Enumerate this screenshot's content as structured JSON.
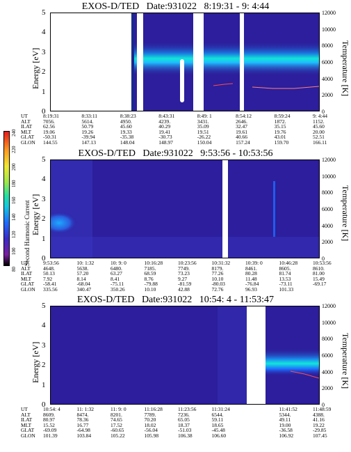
{
  "colors": {
    "background": "#2c1e9c",
    "accent_band": "#12e6d9",
    "band_core": "#1fbaff",
    "temp_curve": "#ff4d4d",
    "gap": "#ffffff"
  },
  "colorbar": {
    "label": "Second Harmonic Current",
    "ticks": [
      "80",
      "100",
      "120",
      "140",
      "160",
      "180",
      "200",
      "220",
      "240"
    ]
  },
  "chart_data": [
    {
      "type": "heatmap",
      "title": "EXOS-D/TED   Date:931022   8:19:31 - 9: 4:44",
      "ylabel": "Energy [eV]",
      "ylabel_right": "Temperature [K]",
      "ylim": [
        0,
        5
      ],
      "ylim_right": [
        0,
        12000
      ],
      "yticks": [
        "0",
        "1",
        "2",
        "3",
        "4",
        "5"
      ],
      "yticks_right": [
        "0",
        "2000",
        "4000",
        "6000",
        "8000",
        "10000",
        "12000"
      ],
      "orbit_labels": [
        "UT",
        "ALT",
        "ILAT",
        "MLT",
        "GLAT",
        "GLON"
      ],
      "orbit": {
        "UT": [
          "8:19:31",
          "8:33:11",
          "8:38:23",
          "8:43:31",
          "8:49: 1",
          "8:54:12",
          "8:59:24",
          "9: 4:44"
        ],
        "ALT": [
          "7056.",
          "5614.",
          "4950.",
          "4239.",
          "3431.",
          "2646.",
          "1872.",
          "1152."
        ],
        "ILAT": [
          "62.56",
          "50.79",
          "45.60",
          "40.29",
          "35.09",
          "32.47",
          "35.15",
          "45.60"
        ],
        "MLT": [
          "19.06",
          "19.26",
          "19.33",
          "19.41",
          "19.51",
          "19.61",
          "19.76",
          "20.00"
        ],
        "GLAT": [
          "-50.31",
          "-39.94",
          "-35.38",
          "-30.73",
          "-26.22",
          "40.66",
          "43.01",
          "52.51"
        ],
        "GLON": [
          "144.55",
          "147.13",
          "148.04",
          "148.97",
          "150.04",
          "157.24",
          "159.70",
          "166.11"
        ]
      }
    },
    {
      "type": "heatmap",
      "title": "EXOS-D/TED   Date:931022   9:53:56 - 10:53:56",
      "ylabel": "Energy [eV]",
      "ylabel_right": "Temperature [K]",
      "ylim": [
        0,
        5
      ],
      "ylim_right": [
        0,
        12000
      ],
      "yticks": [
        "0",
        "1",
        "2",
        "3",
        "4",
        "5"
      ],
      "yticks_right": [
        "0",
        "2000",
        "4000",
        "6000",
        "8000",
        "10000",
        "12000"
      ],
      "orbit_labels": [
        "UT",
        "ALT",
        "ILAT",
        "MLT",
        "GLAT",
        "GLON"
      ],
      "orbit": {
        "UT": [
          "9:53:56",
          "10: 1:32",
          "10: 9: 0",
          "10:16:28",
          "10:23:56",
          "10:31:32",
          "10:39: 0",
          "10:46:28",
          "10:53:56"
        ],
        "ALT": [
          "4648.",
          "5638.",
          "6480.",
          "7185.",
          "7749.",
          "8179.",
          "8461.",
          "8605.",
          "8610."
        ],
        "ILAT": [
          "50.13",
          "57.20",
          "63.27",
          "68.59",
          "73.23",
          "77.26",
          "80.28",
          "81.74",
          "81.00"
        ],
        "MLT": [
          "7.92",
          "8.14",
          "8.41",
          "8.76",
          "9.27",
          "10.10",
          "11.48",
          "13.53",
          "15.49"
        ],
        "GLAT": [
          "-58.41",
          "-68.04",
          "-75.11",
          "-79.88",
          "-81.59",
          "-80.03",
          "-76.84",
          "-73.11",
          "-69.17"
        ],
        "GLON": [
          "335.56",
          "340.47",
          "350.26",
          "10.10",
          "42.88",
          "72.76",
          "96.93",
          "101.33",
          ""
        ]
      }
    },
    {
      "type": "heatmap",
      "title": "EXOS-D/TED   Date:931022   10:54: 4 - 11:53:47",
      "ylabel": "Energy [eV]",
      "ylabel_right": "Temperature [K]",
      "ylim": [
        0,
        5
      ],
      "ylim_right": [
        0,
        12000
      ],
      "yticks": [
        "0",
        "1",
        "2",
        "3",
        "4",
        "5"
      ],
      "yticks_right": [
        "0",
        "2000",
        "4000",
        "6000",
        "8000",
        "10000",
        "12000"
      ],
      "orbit_labels": [
        "UT",
        "ALT",
        "ILAT",
        "MLT",
        "GLAT",
        "GLON"
      ],
      "orbit": {
        "UT": [
          "10:54: 4",
          "11: 1:32",
          "11: 9: 0",
          "11:16:28",
          "11:23:56",
          "11:31:24",
          "",
          "11:41:52",
          "11:48:59"
        ],
        "ALT": [
          "8609.",
          "8474.",
          "8201.",
          "7789.",
          "7236.",
          "6544.",
          "",
          "5344.",
          "4388."
        ],
        "ILAT": [
          "80.97",
          "78.36",
          "74.65",
          "70.20",
          "65.05",
          "59.11",
          "",
          "49.11",
          "41.16"
        ],
        "MLT": [
          "15.52",
          "16.77",
          "17.52",
          "18.02",
          "18.37",
          "18.65",
          "",
          "19.00",
          "19.22"
        ],
        "GLAT": [
          "-69.09",
          "-64.98",
          "-60.65",
          "-56.04",
          "-51.03",
          "-45.48",
          "",
          "-36.58",
          "-29.85"
        ],
        "GLON": [
          "101.39",
          "103.84",
          "105.22",
          "105.98",
          "106.38",
          "106.60",
          "",
          "106.92",
          "107.45"
        ]
      }
    }
  ]
}
